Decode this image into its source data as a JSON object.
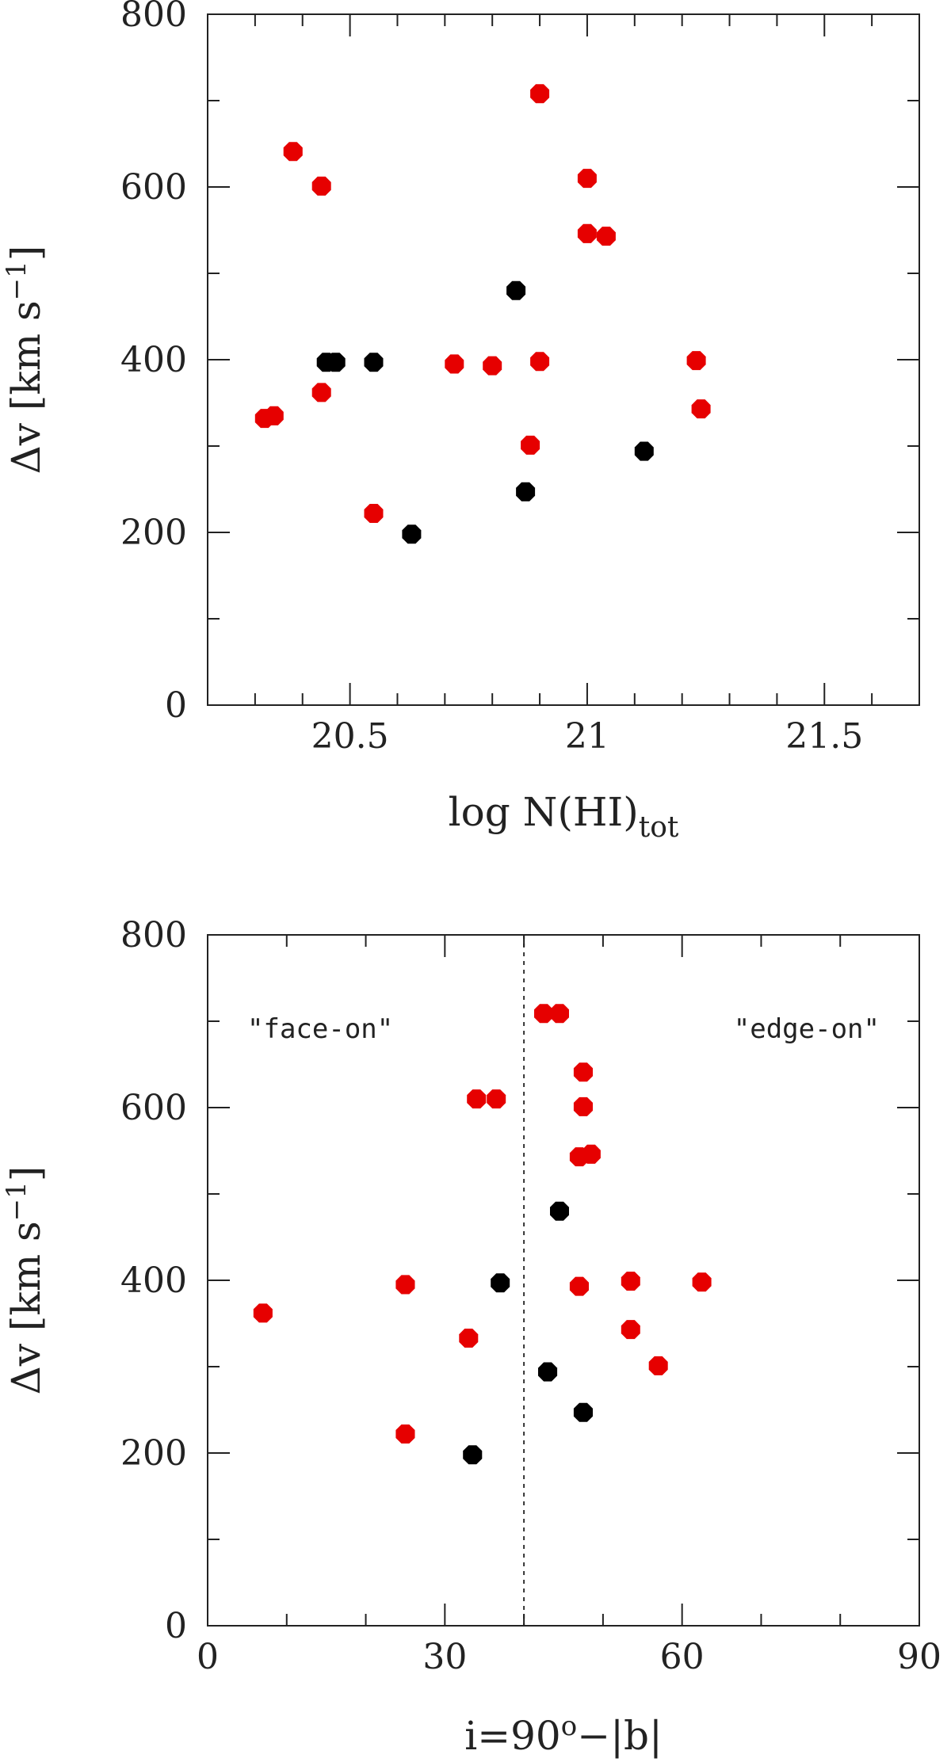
{
  "colors": {
    "red": "#e60000",
    "black": "#000000",
    "axis": "#222222"
  },
  "chart_data": [
    {
      "type": "scatter",
      "xlabel": "log N(HI)",
      "xlabel_sub": "tot",
      "ylabel": "Δv [km s",
      "ylabel_sup": "−1",
      "ylabel_tail": "]",
      "xlim": [
        20.2,
        21.7
      ],
      "ylim": [
        0,
        800
      ],
      "xticks": [
        "20.5",
        "21",
        "21.5"
      ],
      "xtick_values": [
        20.5,
        21.0,
        21.5
      ],
      "yticks": [
        "0",
        "200",
        "400",
        "600",
        "800"
      ],
      "ytick_values": [
        0,
        200,
        400,
        600,
        800
      ],
      "x_minor_step": 0.1,
      "y_minor_step": 100,
      "annotations": [],
      "series": [
        {
          "color": "red",
          "points": [
            [
              20.32,
              332
            ],
            [
              20.34,
              335
            ],
            [
              20.38,
              641
            ],
            [
              20.44,
              601
            ],
            [
              20.44,
              362
            ],
            [
              20.55,
              222
            ],
            [
              20.72,
              395
            ],
            [
              20.8,
              393
            ],
            [
              20.88,
              301
            ],
            [
              20.9,
              398
            ],
            [
              20.9,
              708
            ],
            [
              21.0,
              610
            ],
            [
              21.0,
              546
            ],
            [
              21.04,
              543
            ],
            [
              21.23,
              399
            ],
            [
              21.24,
              343
            ]
          ]
        },
        {
          "color": "black",
          "points": [
            [
              20.45,
              397
            ],
            [
              20.47,
              397
            ],
            [
              20.55,
              397
            ],
            [
              20.63,
              198
            ],
            [
              20.85,
              480
            ],
            [
              20.87,
              247
            ],
            [
              21.12,
              294
            ]
          ]
        }
      ]
    },
    {
      "type": "scatter",
      "xlabel": "i=90",
      "xlabel_sup": "o",
      "xlabel_tail": "−|b|",
      "ylabel": "Δv [km s",
      "ylabel_sup": "−1",
      "ylabel_tail": "]",
      "xlim": [
        0,
        90
      ],
      "ylim": [
        0,
        800
      ],
      "xticks": [
        "0",
        "30",
        "60",
        "90"
      ],
      "xtick_values": [
        0,
        30,
        60,
        90
      ],
      "yticks": [
        "0",
        "200",
        "400",
        "600",
        "800"
      ],
      "ytick_values": [
        0,
        200,
        400,
        600,
        800
      ],
      "x_minor_step": 10,
      "y_minor_step": 100,
      "vline_x": 40,
      "annotations": [
        "\"face-on\"",
        "\"edge-on\""
      ],
      "series": [
        {
          "color": "red",
          "points": [
            [
              7,
              362
            ],
            [
              25,
              395
            ],
            [
              25,
              222
            ],
            [
              33,
              333
            ],
            [
              34,
              610
            ],
            [
              36.5,
              610
            ],
            [
              42.5,
              709
            ],
            [
              44.5,
              709
            ],
            [
              47.5,
              641
            ],
            [
              47.5,
              601
            ],
            [
              47,
              543
            ],
            [
              48.5,
              546
            ],
            [
              47,
              393
            ],
            [
              53.5,
              399
            ],
            [
              53.5,
              343
            ],
            [
              57,
              301
            ],
            [
              62.5,
              398
            ]
          ]
        },
        {
          "color": "black",
          "points": [
            [
              33.5,
              198
            ],
            [
              37,
              397
            ],
            [
              43,
              294
            ],
            [
              44.5,
              480
            ],
            [
              47.5,
              247
            ]
          ]
        }
      ]
    }
  ]
}
